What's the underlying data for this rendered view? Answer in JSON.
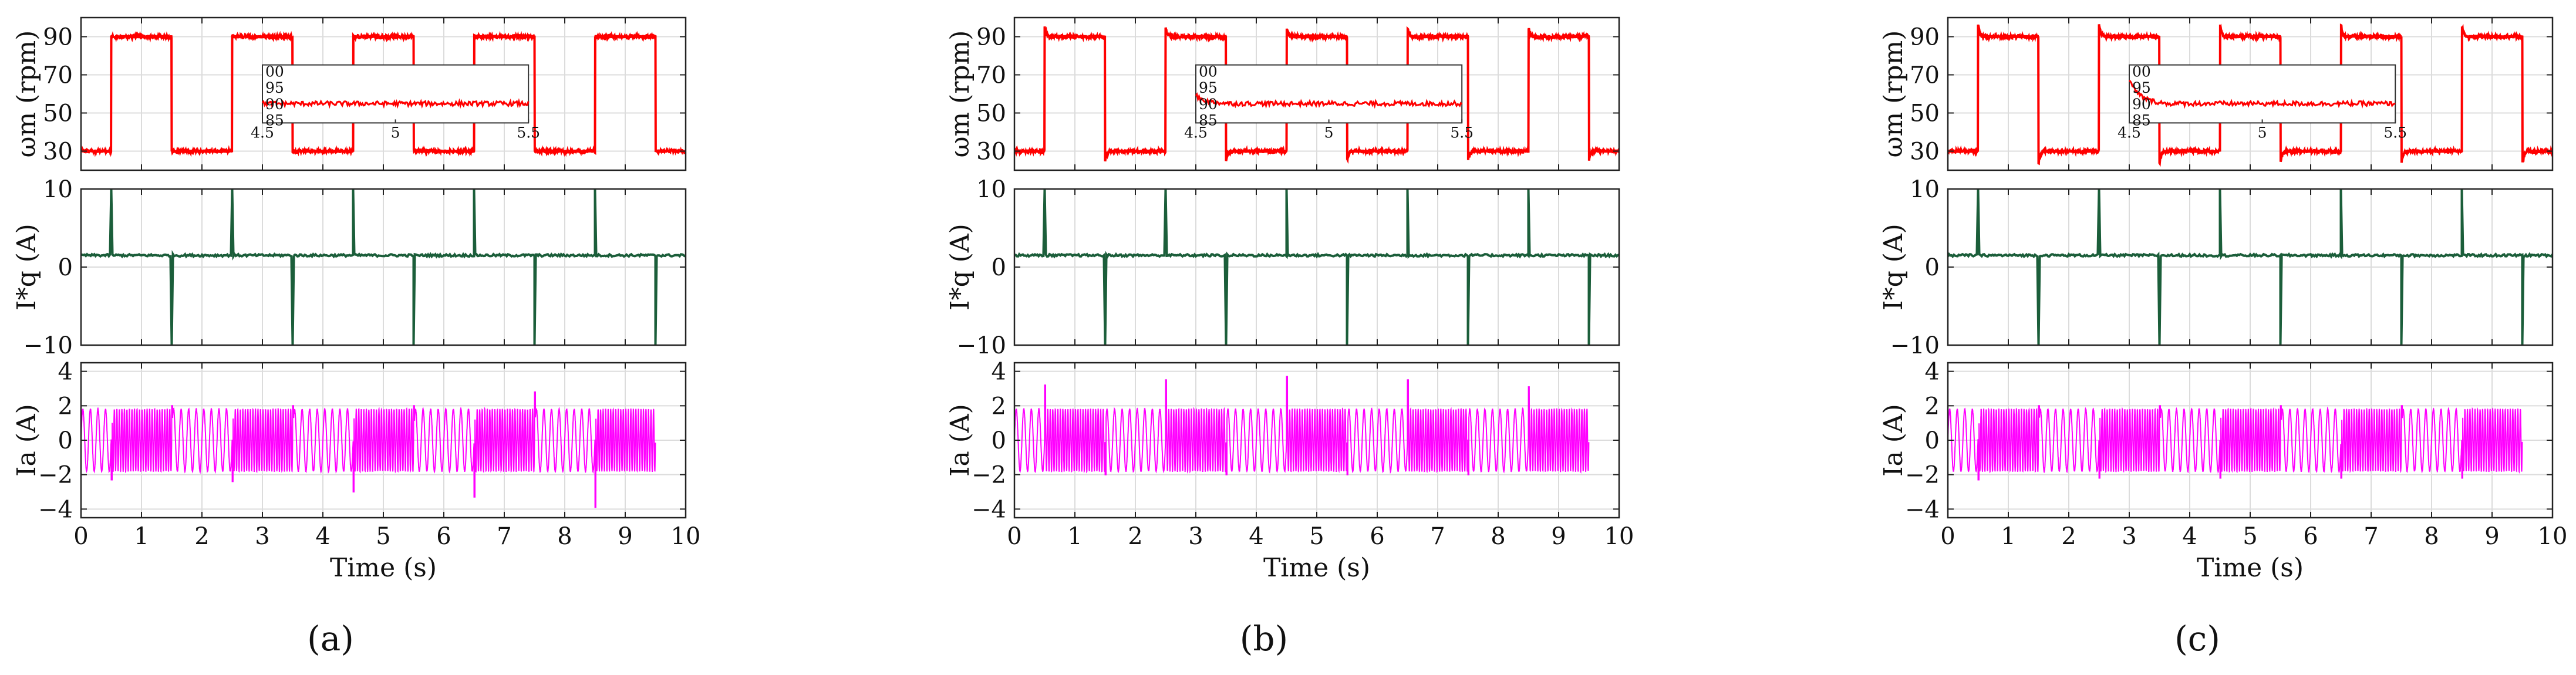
{
  "figure": {
    "panels": [
      {
        "caption": "(a)",
        "caption_letter": "a"
      },
      {
        "caption": "(b)",
        "caption_letter": "b"
      },
      {
        "caption": "(c)",
        "caption_letter": "c"
      }
    ]
  },
  "chart_data": [
    {
      "type": "line",
      "panel": "(a)",
      "xlabel": "Time (s)",
      "xlim": [
        0,
        10
      ],
      "xticks": [
        0,
        1,
        2,
        3,
        4,
        5,
        6,
        7,
        8,
        9,
        10
      ],
      "subplots": [
        {
          "name": "speed",
          "ylabel": "ωm (rpm)",
          "ylim": [
            20,
            100
          ],
          "yticks": [
            30,
            50,
            70,
            90
          ],
          "color": "#ff0000",
          "x": [
            0,
            0.5,
            0.5,
            1.5,
            1.5,
            2.5,
            2.5,
            3.5,
            3.5,
            4.5,
            4.5,
            5.5,
            5.5,
            6.5,
            6.5,
            7.5,
            7.5,
            8.5,
            8.5,
            9.5,
            9.5,
            10
          ],
          "y": [
            30,
            30,
            90,
            90,
            30,
            30,
            90,
            90,
            30,
            30,
            90,
            90,
            30,
            30,
            90,
            90,
            30,
            30,
            90,
            90,
            30,
            30
          ],
          "inset": {
            "xlim": [
              4.5,
              5.5
            ],
            "ylim": [
              85,
              100
            ],
            "xticks": [
              4.5,
              5,
              5.5
            ],
            "xtick_labels": [
              "4.5",
              "5",
              "5.5"
            ],
            "ytick_labels": [
              "00",
              "95",
              "90",
              "85"
            ],
            "level": 90,
            "overshoot": 0
          }
        },
        {
          "name": "iq_ref",
          "ylabel": "I*q (A)",
          "ylim": [
            -10,
            10
          ],
          "yticks": [
            -10,
            0,
            10
          ],
          "color": "#1b5e3a",
          "baseline": 1.5,
          "spikes_up": [
            0.5,
            2.5,
            4.5,
            6.5,
            8.5
          ],
          "spikes_down": [
            1.5,
            3.5,
            5.5,
            7.5,
            9.5
          ],
          "spike_up_peak": 10,
          "spike_down_peak": -10
        },
        {
          "name": "ia",
          "ylabel": "Ia (A)",
          "ylim": [
            -4.5,
            4.5
          ],
          "yticks": [
            -4,
            -2,
            0,
            2,
            4
          ],
          "color": "#ff00ff",
          "amplitude": 1.8,
          "freq_at_90rpm_hz": 24,
          "freq_at_30rpm_hz": 8,
          "transient_peaks": [
            -2.3,
            2.0,
            -2.4,
            2.0,
            -3.0,
            2.0,
            -3.3,
            2.8,
            -3.9
          ]
        }
      ]
    },
    {
      "type": "line",
      "panel": "(b)",
      "xlabel": "Time (s)",
      "xlim": [
        0,
        10
      ],
      "xticks": [
        0,
        1,
        2,
        3,
        4,
        5,
        6,
        7,
        8,
        9,
        10
      ],
      "subplots": [
        {
          "name": "speed",
          "ylabel": "ωm (rpm)",
          "ylim": [
            20,
            100
          ],
          "yticks": [
            30,
            50,
            70,
            90
          ],
          "color": "#ff0000",
          "overshoot": 5,
          "x": [
            0,
            0.5,
            0.5,
            1.5,
            1.5,
            2.5,
            2.5,
            3.5,
            3.5,
            4.5,
            4.5,
            5.5,
            5.5,
            6.5,
            6.5,
            7.5,
            7.5,
            8.5,
            8.5,
            9.5,
            9.5,
            10
          ],
          "y": [
            30,
            30,
            90,
            90,
            30,
            30,
            90,
            90,
            30,
            30,
            90,
            90,
            30,
            30,
            90,
            90,
            30,
            30,
            90,
            90,
            30,
            30
          ],
          "inset": {
            "xlim": [
              4.5,
              5.5
            ],
            "ylim": [
              85,
              100
            ],
            "xticks": [
              4.5,
              5,
              5.5
            ],
            "xtick_labels": [
              "4.5",
              "5",
              "5.5"
            ],
            "ytick_labels": [
              "00",
              "95",
              "90",
              "85"
            ],
            "level": 90,
            "overshoot": 2
          }
        },
        {
          "name": "iq_ref",
          "ylabel": "I*q (A)",
          "ylim": [
            -10,
            10
          ],
          "yticks": [
            -10,
            0,
            10
          ],
          "color": "#1b5e3a",
          "baseline": 1.5,
          "spikes_up": [
            0.5,
            2.5,
            4.5,
            6.5,
            8.5
          ],
          "spikes_down": [
            1.5,
            3.5,
            5.5,
            7.5,
            9.5
          ],
          "spike_up_peak": 10,
          "spike_down_peak": -10
        },
        {
          "name": "ia",
          "ylabel": "Ia (A)",
          "ylim": [
            -4.5,
            4.5
          ],
          "yticks": [
            -4,
            -2,
            0,
            2,
            4
          ],
          "color": "#ff00ff",
          "amplitude": 1.8,
          "freq_at_90rpm_hz": 24,
          "freq_at_30rpm_hz": 8,
          "transient_peaks": [
            3.2,
            -2.0,
            3.5,
            -2.0,
            3.7,
            -2.0,
            3.5,
            -2.0,
            3.1
          ]
        }
      ]
    },
    {
      "type": "line",
      "panel": "(c)",
      "xlabel": "Time (s)",
      "xlim": [
        0,
        10
      ],
      "xticks": [
        0,
        1,
        2,
        3,
        4,
        5,
        6,
        7,
        8,
        9,
        10
      ],
      "subplots": [
        {
          "name": "speed",
          "ylabel": "ωm (rpm)",
          "ylim": [
            20,
            100
          ],
          "yticks": [
            30,
            50,
            70,
            90
          ],
          "color": "#ff0000",
          "overshoot": 7,
          "x": [
            0,
            0.5,
            0.5,
            1.5,
            1.5,
            2.5,
            2.5,
            3.5,
            3.5,
            4.5,
            4.5,
            5.5,
            5.5,
            6.5,
            6.5,
            7.5,
            7.5,
            8.5,
            8.5,
            9.5,
            9.5,
            10
          ],
          "y": [
            30,
            30,
            90,
            90,
            30,
            30,
            90,
            90,
            30,
            30,
            90,
            90,
            30,
            30,
            90,
            90,
            30,
            30,
            90,
            90,
            30,
            30
          ],
          "inset": {
            "xlim": [
              4.5,
              5.5
            ],
            "ylim": [
              85,
              100
            ],
            "xticks": [
              4.5,
              5,
              5.5
            ],
            "xtick_labels": [
              "4.5",
              "5",
              "5.5"
            ],
            "ytick_labels": [
              "00",
              "95",
              "90",
              "85"
            ],
            "level": 90,
            "overshoot": 6
          }
        },
        {
          "name": "iq_ref",
          "ylabel": "I*q (A)",
          "ylim": [
            -10,
            10
          ],
          "yticks": [
            -10,
            0,
            10
          ],
          "color": "#1b5e3a",
          "baseline": 1.5,
          "spikes_up": [
            0.5,
            2.5,
            4.5,
            6.5,
            8.5
          ],
          "spikes_down": [
            1.5,
            3.5,
            5.5,
            7.5,
            9.5
          ],
          "spike_up_peak": 10,
          "spike_down_peak": -10
        },
        {
          "name": "ia",
          "ylabel": "Ia (A)",
          "ylim": [
            -4.5,
            4.5
          ],
          "yticks": [
            -4,
            -2,
            0,
            2,
            4
          ],
          "color": "#ff00ff",
          "amplitude": 1.8,
          "freq_at_90rpm_hz": 24,
          "freq_at_30rpm_hz": 8,
          "transient_peaks": [
            -2.3,
            2.0,
            -2.2,
            2.0,
            -2.2,
            2.0,
            -2.2,
            2.0,
            -2.2
          ]
        }
      ]
    }
  ]
}
